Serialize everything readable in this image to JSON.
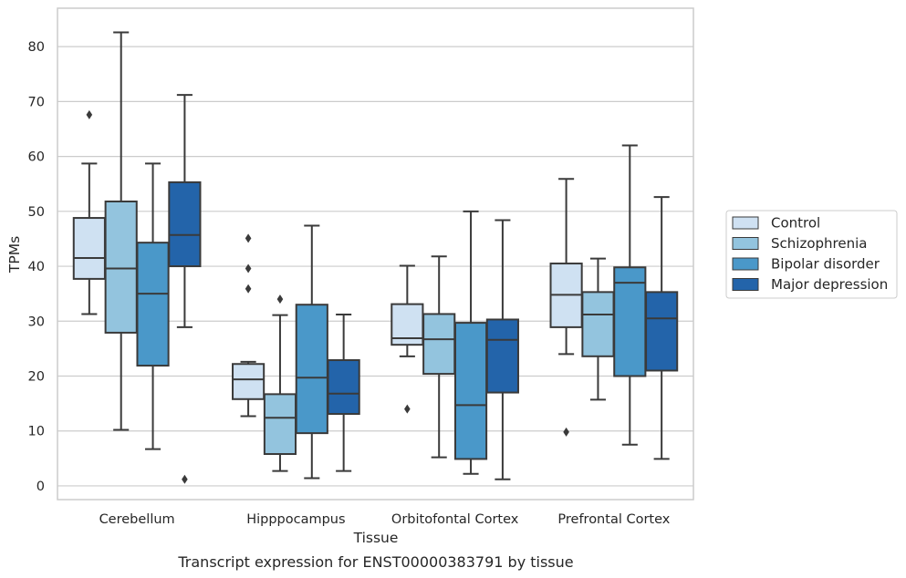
{
  "caption": "Transcript expression for ENST00000383791 by tissue",
  "chart_data": {
    "type": "box",
    "title": "",
    "xlabel": "Tissue",
    "ylabel": "TPMs",
    "ylim": [
      -2.5,
      87
    ],
    "yticks": [
      0,
      10,
      20,
      30,
      40,
      50,
      60,
      70,
      80
    ],
    "grid": "horizontal",
    "legend_position": "right",
    "categories": [
      "Cerebellum",
      "Hipppocampus",
      "Orbitofontal Cortex",
      "Prefrontal Cortex"
    ],
    "series": [
      {
        "name": "Control",
        "color": "#cfe1f2",
        "boxes": [
          {
            "whislo": 31.3,
            "q1": 37.7,
            "med": 41.5,
            "q3": 48.8,
            "whishi": 58.7,
            "fliers": [
              67.6
            ]
          },
          {
            "whislo": 12.7,
            "q1": 15.8,
            "med": 19.4,
            "q3": 22.2,
            "whishi": 22.6,
            "fliers": [
              45.1,
              39.6,
              35.9
            ]
          },
          {
            "whislo": 23.6,
            "q1": 25.7,
            "med": 26.9,
            "q3": 33.1,
            "whishi": 40.1,
            "fliers": [
              14.0
            ]
          },
          {
            "whislo": 24.0,
            "q1": 28.9,
            "med": 34.8,
            "q3": 40.5,
            "whishi": 55.9,
            "fliers": [
              9.8
            ]
          }
        ]
      },
      {
        "name": "Schizophrenia",
        "color": "#93c4de",
        "boxes": [
          {
            "whislo": 10.2,
            "q1": 27.9,
            "med": 39.6,
            "q3": 51.8,
            "whishi": 82.6,
            "fliers": []
          },
          {
            "whislo": 2.7,
            "q1": 5.8,
            "med": 12.4,
            "q3": 16.7,
            "whishi": 31.1,
            "fliers": [
              34.0
            ]
          },
          {
            "whislo": 5.2,
            "q1": 20.4,
            "med": 26.7,
            "q3": 31.3,
            "whishi": 41.8,
            "fliers": []
          },
          {
            "whislo": 15.7,
            "q1": 23.6,
            "med": 31.2,
            "q3": 35.3,
            "whishi": 41.4,
            "fliers": []
          }
        ]
      },
      {
        "name": "Bipolar disorder",
        "color": "#4a98c9",
        "boxes": [
          {
            "whislo": 6.7,
            "q1": 21.9,
            "med": 35.0,
            "q3": 44.3,
            "whishi": 58.7,
            "fliers": []
          },
          {
            "whislo": 1.4,
            "q1": 9.6,
            "med": 19.7,
            "q3": 33.0,
            "whishi": 47.4,
            "fliers": []
          },
          {
            "whislo": 2.2,
            "q1": 4.9,
            "med": 14.7,
            "q3": 29.7,
            "whishi": 50.0,
            "fliers": []
          },
          {
            "whislo": 7.5,
            "q1": 20.0,
            "med": 37.0,
            "q3": 39.8,
            "whishi": 62.0,
            "fliers": []
          }
        ]
      },
      {
        "name": "Major depression",
        "color": "#2364aa",
        "boxes": [
          {
            "whislo": 28.9,
            "q1": 40.0,
            "med": 45.7,
            "q3": 55.3,
            "whishi": 71.2,
            "fliers": [
              1.2
            ]
          },
          {
            "whislo": 2.7,
            "q1": 13.1,
            "med": 16.8,
            "q3": 22.9,
            "whishi": 31.2,
            "fliers": []
          },
          {
            "whislo": 1.2,
            "q1": 17.0,
            "med": 26.6,
            "q3": 30.3,
            "whishi": 48.4,
            "fliers": []
          },
          {
            "whislo": 4.9,
            "q1": 21.0,
            "med": 30.5,
            "q3": 35.3,
            "whishi": 52.6,
            "fliers": []
          }
        ]
      }
    ],
    "colors": {
      "axes_frame": "#cccccc",
      "grid": "#cccccc",
      "box_edge": "#3a3a3a"
    }
  }
}
